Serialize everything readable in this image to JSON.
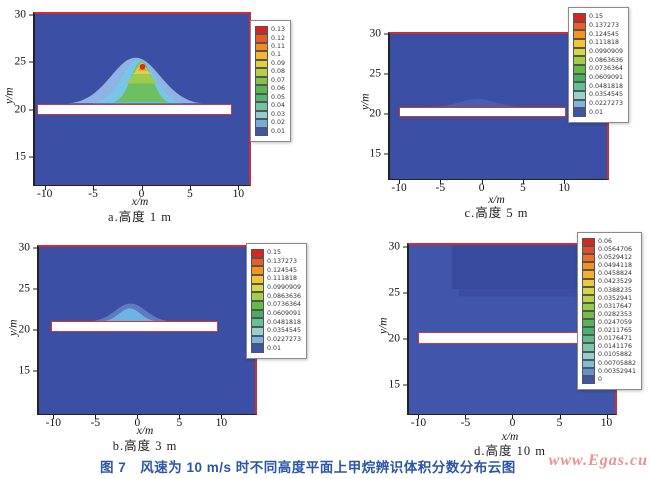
{
  "figure": {
    "caption": "图 7　风速为 10 m/s 时不同高度平面上甲烷辨识体积分数分布云图",
    "watermark": "www.Egas.cu",
    "palette": [
      "#d8251e",
      "#ef5d24",
      "#f7941d",
      "#f2c437",
      "#d3d844",
      "#a0ce45",
      "#64bb47",
      "#46af63",
      "#63bf94",
      "#98d0cf",
      "#78b5e0",
      "#3c55a9"
    ],
    "colors": {
      "plot_background_blue": "#3b50a5",
      "plot_background_blue_d": "#4156aa",
      "frame_red": "#d02c33",
      "axis_black": "#222222",
      "obstacle_fill": "#ffffff",
      "obstacle_border": "#d0383f",
      "caption_blue": "#2b55a7",
      "watermark_pink": "#f19090"
    }
  },
  "chart_data": [
    {
      "id": "a",
      "type": "heatmap",
      "style": "filled-contour",
      "caption": "a.高度 1 m",
      "xlabel": "x/m",
      "ylabel": "y/m",
      "x_ticks": [
        -10,
        -5,
        0,
        5,
        10
      ],
      "y_ticks": [
        30,
        25,
        20,
        15
      ],
      "xlim": [
        -11.0,
        11.1
      ],
      "ylim": [
        12.1,
        30.1
      ],
      "background": "#3b50a5",
      "obstacle": {
        "x1": -10.8,
        "x2": 9.3,
        "y1": 19.5,
        "y2": 20.6
      },
      "colorbar": {
        "labels": [
          "0.13",
          "0.12",
          "0.11",
          "0.1",
          "0.09",
          "0.08",
          "0.07",
          "0.06",
          "0.05",
          "0.04",
          "0.03",
          "0.02",
          "0.01"
        ]
      },
      "plume": {
        "layers": [
          {
            "cx": -0.6,
            "hw": 7.2,
            "base": 20.7,
            "peak": 25.5,
            "color": "#8fb4e3"
          },
          {
            "cx": -0.3,
            "hw": 4.9,
            "base": 20.7,
            "peak": 25.3,
            "color": "#77c6e8"
          },
          {
            "cx": 0.0,
            "hw": 3.1,
            "base": 20.8,
            "peak": 25.1,
            "color": "#6dbf62"
          },
          {
            "cx": 0.0,
            "hw": 1.9,
            "base": 22.8,
            "peak": 25.0,
            "color": "#9ecb4d"
          },
          {
            "cx": 0.05,
            "hw": 1.1,
            "base": 23.8,
            "peak": 24.95,
            "color": "#ddd24a"
          },
          {
            "cx": 0.1,
            "hw": 0.55,
            "base": 24.15,
            "peak": 24.85,
            "color": "#f08c2b"
          }
        ],
        "dot": {
          "x": 0.1,
          "y": 24.55,
          "r": 0.3,
          "color": "#d62e26"
        }
      },
      "regions": []
    },
    {
      "id": "c",
      "type": "heatmap",
      "style": "filled-contour",
      "caption": "c.高度 5 m",
      "xlabel": "x/m",
      "ylabel": "y/m",
      "x_ticks": [
        -10,
        -5,
        0,
        5,
        10
      ],
      "y_ticks": [
        30,
        25,
        20,
        15
      ],
      "xlim": [
        -11.1,
        15.2
      ],
      "ylim": [
        11.9,
        30.0
      ],
      "background": "#3b50a5",
      "obstacle": {
        "x1": -10.0,
        "x2": 10.2,
        "y1": 19.7,
        "y2": 20.9
      },
      "colorbar": {
        "labels": [
          "0.15",
          "0.137273",
          "0.124545",
          "0.111818",
          "0.0990909",
          "0.0863636",
          "0.0736364",
          "0.0609091",
          "0.0481818",
          "0.0354545",
          "0.0227273",
          "0.01"
        ]
      },
      "plume": {
        "layers": [
          {
            "cx": -0.5,
            "hw": 6.0,
            "base": 20.9,
            "peak": 21.9,
            "color": "#475fae"
          }
        ]
      },
      "regions": []
    },
    {
      "id": "b",
      "type": "heatmap",
      "style": "filled-contour",
      "caption": "b.高度 3 m",
      "xlabel": "x/m",
      "ylabel": "y/m",
      "x_ticks": [
        -10,
        -5,
        0,
        5,
        10
      ],
      "y_ticks": [
        30,
        25,
        20,
        15
      ],
      "xlim": [
        -11.7,
        14.0
      ],
      "ylim": [
        9.7,
        30.1
      ],
      "background": "#3b50a5",
      "obstacle": {
        "x1": -10.3,
        "x2": 9.6,
        "y1": 19.7,
        "y2": 21.0
      },
      "colorbar": {
        "labels": [
          "0.15",
          "0.137273",
          "0.124545",
          "0.111818",
          "0.0990909",
          "0.0863636",
          "0.0736364",
          "0.0609091",
          "0.0481818",
          "0.0354545",
          "0.0227273",
          "0.01"
        ]
      },
      "plume": {
        "layers": [
          {
            "cx": -0.8,
            "hw": 5.2,
            "base": 21.0,
            "peak": 23.2,
            "color": "#5d7ac2"
          },
          {
            "cx": -0.9,
            "hw": 3.6,
            "base": 21.0,
            "peak": 22.6,
            "color": "#6ab5e4"
          }
        ]
      },
      "regions": []
    },
    {
      "id": "d",
      "type": "heatmap",
      "style": "filled-contour",
      "caption": "d.高度 10 m",
      "xlabel": "x/m",
      "ylabel": "y/m",
      "x_ticks": [
        -10,
        -5,
        0,
        5,
        10
      ],
      "y_ticks": [
        30,
        25,
        20,
        15
      ],
      "xlim": [
        -11.0,
        10.9
      ],
      "ylim": [
        11.8,
        30.2
      ],
      "background": "#4156aa",
      "obstacle": {
        "x1": -10.0,
        "x2": 8.7,
        "y1": 19.4,
        "y2": 20.7
      },
      "colorbar": {
        "labels": [
          "0.06",
          "0.0564706",
          "0.0529412",
          "0.0494118",
          "0.0458824",
          "0.0423529",
          "0.0388235",
          "0.0352941",
          "0.0317647",
          "0.0282353",
          "0.0247059",
          "0.0211765",
          "0.0176471",
          "0.0141176",
          "0.0105882",
          "0.00705882",
          "0.00352941",
          "0"
        ]
      },
      "plume": {
        "layers": []
      },
      "regions": [
        {
          "x1": -6.4,
          "x2": 10.9,
          "y1": 25.4,
          "y2": 30.2,
          "color": "#384a9e"
        },
        {
          "x1": -5.7,
          "x2": 10.9,
          "y1": 24.6,
          "y2": 25.4,
          "color": "#3a4da1"
        }
      ]
    }
  ]
}
